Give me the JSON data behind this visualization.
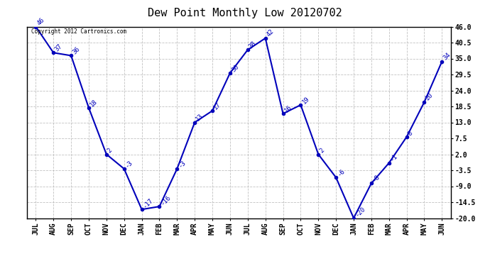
{
  "title": "Dew Point Monthly Low 20120702",
  "copyright": "Copyright 2012 Cartronics.com",
  "months": [
    "JUL",
    "AUG",
    "SEP",
    "OCT",
    "NOV",
    "DEC",
    "JAN",
    "FEB",
    "MAR",
    "APR",
    "MAY",
    "JUN",
    "JUL",
    "AUG",
    "SEP",
    "OCT",
    "NOV",
    "DEC",
    "JAN",
    "FEB",
    "MAR",
    "APR",
    "MAY",
    "JUN"
  ],
  "values": [
    46,
    37,
    36,
    18,
    2,
    -3,
    -17,
    -16,
    -3,
    13,
    17,
    30,
    38,
    42,
    16,
    19,
    2,
    -6,
    -20,
    -8,
    -1,
    8,
    20,
    34
  ],
  "ylim": [
    -20.0,
    46.0
  ],
  "yticks": [
    46.0,
    40.5,
    35.0,
    29.5,
    24.0,
    18.5,
    13.0,
    7.5,
    2.0,
    -3.5,
    -9.0,
    -14.5,
    -20.0
  ],
  "line_color": "#0000bb",
  "marker_color": "#0000bb",
  "bg_color": "#ffffff",
  "grid_color": "#bbbbbb",
  "title_fontsize": 11,
  "label_fontsize": 7,
  "annotation_fontsize": 6.5
}
